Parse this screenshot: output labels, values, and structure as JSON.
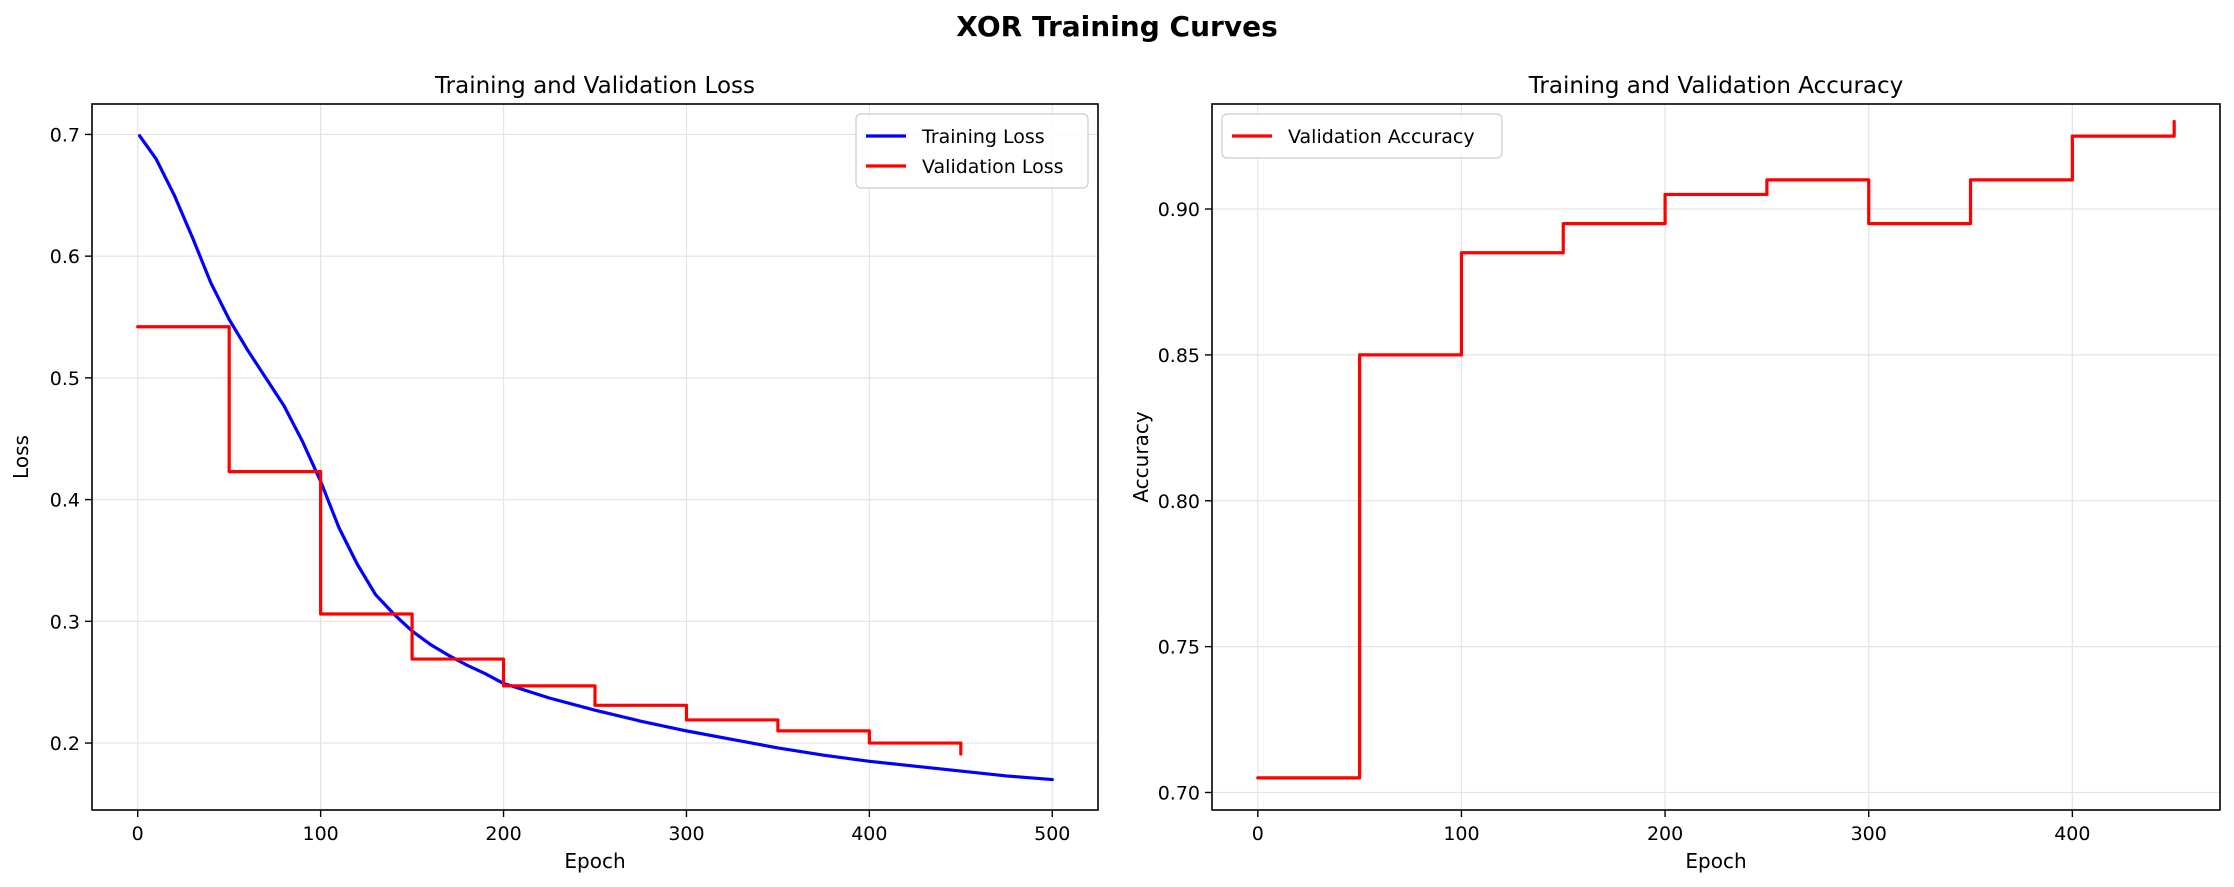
{
  "figure": {
    "title": "XOR Training Curves"
  },
  "chart_data": [
    {
      "type": "line",
      "title": "Training and Validation Loss",
      "xlabel": "Epoch",
      "ylabel": "Loss",
      "xlim": [
        -25,
        525
      ],
      "ylim": [
        0.145,
        0.725
      ],
      "xticks": [
        0,
        100,
        200,
        300,
        400,
        500
      ],
      "yticks": [
        0.2,
        0.3,
        0.4,
        0.5,
        0.6,
        0.7
      ],
      "ytick_format": 1,
      "grid": true,
      "legend_position": "top-right",
      "series": [
        {
          "name": "Training Loss",
          "color": "#0000ff",
          "step": false,
          "x": [
            1,
            10,
            20,
            30,
            40,
            50,
            60,
            70,
            80,
            90,
            100,
            110,
            120,
            130,
            140,
            150,
            160,
            170,
            180,
            190,
            200,
            225,
            250,
            275,
            300,
            325,
            350,
            375,
            400,
            425,
            450,
            475,
            500
          ],
          "y": [
            0.699,
            0.68,
            0.65,
            0.615,
            0.578,
            0.548,
            0.523,
            0.5,
            0.477,
            0.448,
            0.415,
            0.377,
            0.347,
            0.322,
            0.306,
            0.292,
            0.281,
            0.272,
            0.264,
            0.257,
            0.249,
            0.237,
            0.227,
            0.218,
            0.21,
            0.203,
            0.196,
            0.19,
            0.185,
            0.181,
            0.177,
            0.173,
            0.17
          ]
        },
        {
          "name": "Validation Loss",
          "color": "#ff0000",
          "step": true,
          "x": [
            0,
            50,
            100,
            150,
            200,
            250,
            300,
            350,
            400,
            450
          ],
          "y": [
            0.542,
            0.423,
            0.306,
            0.269,
            0.247,
            0.231,
            0.219,
            0.21,
            0.2,
            0.191
          ]
        }
      ]
    },
    {
      "type": "line",
      "title": "Training and Validation Accuracy",
      "xlabel": "Epoch",
      "ylabel": "Accuracy",
      "xlim": [
        -22.5,
        472.5
      ],
      "ylim": [
        0.694,
        0.936
      ],
      "xticks": [
        0,
        100,
        200,
        300,
        400
      ],
      "yticks": [
        0.7,
        0.75,
        0.8,
        0.85,
        0.9
      ],
      "ytick_format": 2,
      "grid": true,
      "legend_position": "top-left",
      "series": [
        {
          "name": "Validation Accuracy",
          "color": "#ff0000",
          "step": true,
          "x": [
            0,
            50,
            100,
            150,
            200,
            250,
            300,
            350,
            400,
            450
          ],
          "y": [
            0.705,
            0.85,
            0.885,
            0.895,
            0.905,
            0.91,
            0.895,
            0.91,
            0.925,
            0.93
          ]
        }
      ]
    }
  ]
}
